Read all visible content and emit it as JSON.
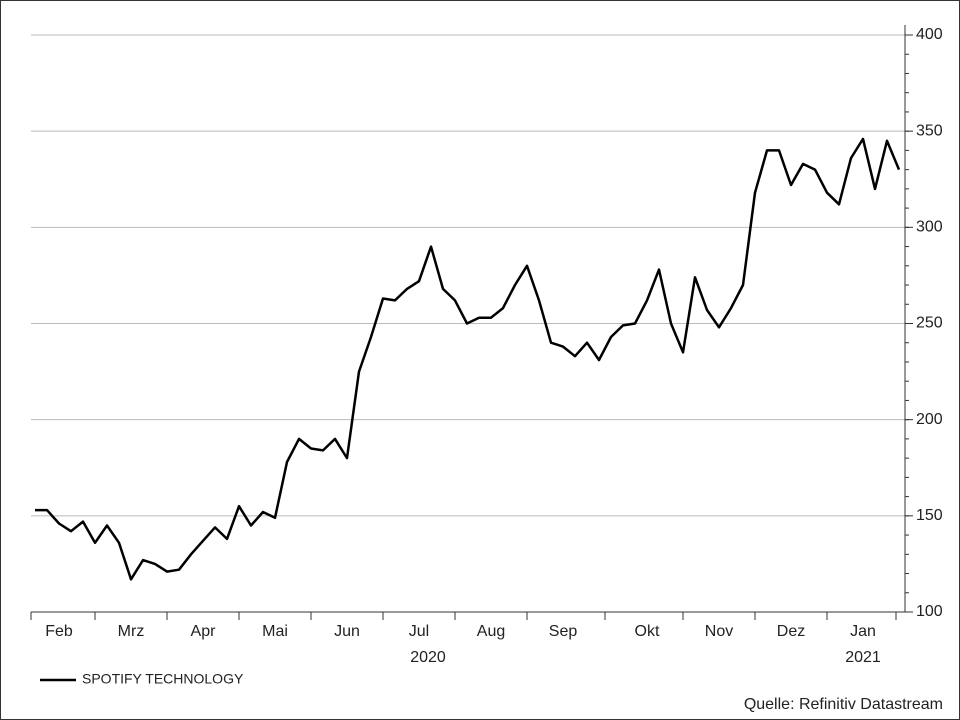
{
  "chart_data": {
    "type": "line",
    "categories": [
      null,
      null,
      "Feb",
      null,
      null,
      null,
      null,
      null,
      "Mrz",
      null,
      null,
      null,
      null,
      null,
      "Apr",
      null,
      null,
      null,
      null,
      null,
      "Mai",
      null,
      null,
      null,
      null,
      null,
      "Jun",
      null,
      null,
      null,
      null,
      null,
      "Jul",
      null,
      null,
      null,
      null,
      null,
      "Aug",
      null,
      null,
      null,
      null,
      null,
      "Sep",
      null,
      null,
      null,
      null,
      null,
      null,
      "Okt",
      null,
      null,
      null,
      null,
      null,
      "Nov",
      null,
      null,
      null,
      null,
      null,
      "Dez",
      null,
      null,
      null,
      null,
      null,
      "Jan",
      null,
      null,
      null
    ],
    "years": [
      "2020",
      "2021"
    ],
    "series": [
      {
        "name": "SPOTIFY TECHNOLOGY",
        "color": "#000000",
        "values": [
          153,
          153,
          146,
          142,
          147,
          136,
          145,
          136,
          117,
          127,
          125,
          121,
          122,
          130,
          137,
          144,
          138,
          155,
          145,
          152,
          149,
          178,
          190,
          185,
          184,
          190,
          180,
          225,
          243,
          263,
          262,
          268,
          272,
          290,
          268,
          262,
          250,
          253,
          253,
          258,
          270,
          280,
          262,
          240,
          238,
          233,
          240,
          231,
          243,
          249,
          250,
          262,
          278,
          250,
          235,
          274,
          257,
          248,
          258,
          270,
          318,
          340,
          340,
          322,
          333,
          330,
          318,
          312,
          336,
          346,
          320,
          345,
          330
        ]
      }
    ],
    "ylim": [
      100,
      400
    ],
    "yticks": [
      100,
      150,
      200,
      250,
      300,
      350,
      400
    ],
    "grid": true,
    "source": "Quelle: Refinitiv Datastream"
  }
}
